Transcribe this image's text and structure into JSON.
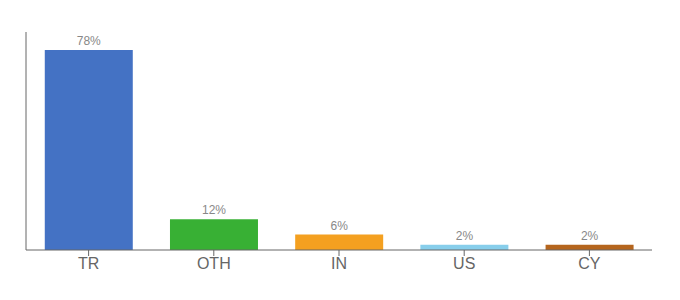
{
  "chart_data": {
    "type": "bar",
    "categories": [
      "TR",
      "OTH",
      "IN",
      "US",
      "CY"
    ],
    "values": [
      78,
      12,
      6,
      2,
      2
    ],
    "value_labels": [
      "78%",
      "12%",
      "6%",
      "2%",
      "2%"
    ],
    "colors": [
      "#4472c4",
      "#38b034",
      "#f4a020",
      "#87ceeb",
      "#b5651d"
    ],
    "ylim": [
      0,
      85
    ],
    "data_labels": true,
    "tick_labels": "x",
    "grid": false
  }
}
